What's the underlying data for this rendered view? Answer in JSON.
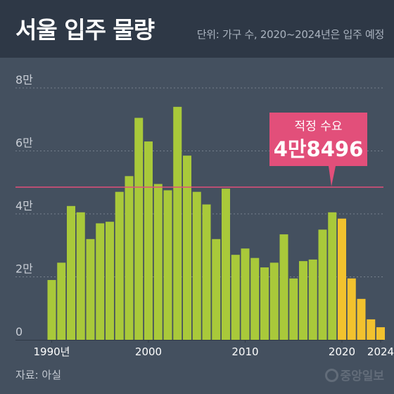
{
  "header": {
    "title": "서울 입주 물량",
    "subtitle": "단위: 가구 수, 2020~2024년은 입주 예정"
  },
  "footer": {
    "source": "자료: 아실",
    "logo": "중앙일보"
  },
  "colors": {
    "background": "#44505f",
    "header_background": "#2e3846",
    "bar_actual": "#a9c93a",
    "bar_planned": "#f2c22e",
    "reference_line": "#e24f7a",
    "callout": "#e24f7a"
  },
  "chart_data": {
    "type": "bar",
    "title": "서울 입주 물량",
    "subtitle": "단위: 가구 수, 2020~2024년은 입주 예정",
    "ylim": [
      0,
      80000
    ],
    "y_ticks": [
      {
        "value": 0,
        "label": "0"
      },
      {
        "value": 20000,
        "label": "2만"
      },
      {
        "value": 40000,
        "label": "4만"
      },
      {
        "value": 60000,
        "label": "6만"
      },
      {
        "value": 80000,
        "label": "8만"
      }
    ],
    "x_ticks": [
      {
        "year": 1990,
        "label": "1990년"
      },
      {
        "year": 2000,
        "label": "2000"
      },
      {
        "year": 2010,
        "label": "2010"
      },
      {
        "year": 2020,
        "label": "2020"
      },
      {
        "year": 2024,
        "label": "2024"
      }
    ],
    "grid": "horizontal dotted",
    "series": [
      {
        "status": "actual",
        "color": "#a9c93a",
        "x": [
          1990,
          1991,
          1992,
          1993,
          1994,
          1995,
          1996,
          1997,
          1998,
          1999,
          2000,
          2001,
          2002,
          2003,
          2004,
          2005,
          2006,
          2007,
          2008,
          2009,
          2010,
          2011,
          2012,
          2013,
          2014,
          2015,
          2016,
          2017,
          2018,
          2019
        ],
        "values": [
          19000,
          24500,
          42500,
          40500,
          32000,
          37000,
          37500,
          47000,
          52000,
          70500,
          63000,
          49500,
          47500,
          74000,
          58500,
          47000,
          43000,
          32000,
          48000,
          27000,
          29000,
          26000,
          23000,
          24500,
          33500,
          19500,
          25000,
          25500,
          35000,
          40500
        ]
      },
      {
        "status": "planned",
        "color": "#f2c22e",
        "x": [
          2020,
          2021,
          2022,
          2023,
          2024
        ],
        "values": [
          38500,
          19500,
          13000,
          6500,
          4000
        ]
      }
    ],
    "reference_line": {
      "value": 48496,
      "label": "적정 수요",
      "value_label": "4만8496"
    }
  }
}
